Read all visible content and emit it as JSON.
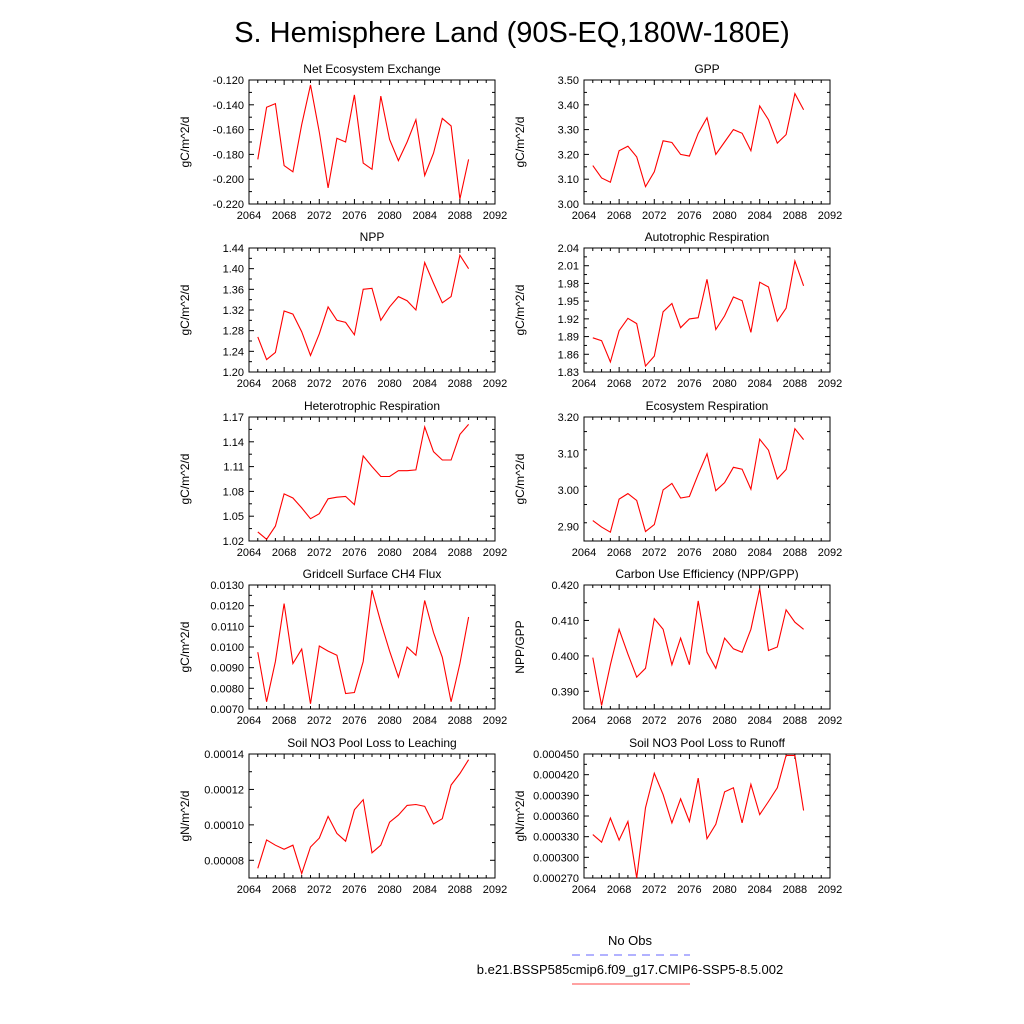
{
  "title": "S. Hemisphere Land (90S-EQ,180W-180E)",
  "legend": {
    "entries": [
      {
        "label": "No Obs",
        "color": "#6666ff",
        "dash": "dashed"
      },
      {
        "label": "b.e21.BSSP585cmip6.f09_g17.CMIP6-SSP5-8.5.002",
        "color": "#ff4444",
        "dash": "solid"
      }
    ]
  },
  "chart_data": [
    {
      "type": "line",
      "title": "Net Ecosystem Exchange",
      "ylabel": "gC/m^2/d",
      "xlim": [
        2064,
        2092
      ],
      "ylim": [
        -0.22,
        -0.12
      ],
      "xticks": [
        "2064",
        "2068",
        "2072",
        "2076",
        "2080",
        "2084",
        "2088",
        "2092"
      ],
      "yticks": [
        "-0.120",
        "-0.140",
        "-0.160",
        "-0.180",
        "-0.200",
        "-0.220"
      ],
      "series": [
        {
          "color": "#ff0000",
          "x": [
            2065,
            2066,
            2067,
            2068,
            2069,
            2070,
            2071,
            2072,
            2073,
            2074,
            2075,
            2076,
            2077,
            2078,
            2079,
            2080,
            2081,
            2082,
            2083,
            2084,
            2085,
            2086,
            2087,
            2088,
            2089
          ],
          "values": [
            -0.184,
            -0.142,
            -0.139,
            -0.189,
            -0.194,
            -0.156,
            -0.124,
            -0.162,
            -0.207,
            -0.167,
            -0.17,
            -0.132,
            -0.187,
            -0.192,
            -0.133,
            -0.168,
            -0.185,
            -0.17,
            -0.152,
            -0.197,
            -0.179,
            -0.151,
            -0.157,
            -0.216,
            -0.184
          ]
        }
      ]
    },
    {
      "type": "line",
      "title": "GPP",
      "ylabel": "gC/m^2/d",
      "xlim": [
        2064,
        2092
      ],
      "ylim": [
        3.0,
        3.5
      ],
      "xticks": [
        "2064",
        "2068",
        "2072",
        "2076",
        "2080",
        "2084",
        "2088",
        "2092"
      ],
      "yticks": [
        "3.50",
        "3.40",
        "3.30",
        "3.20",
        "3.10",
        "3.00"
      ],
      "series": [
        {
          "color": "#ff0000",
          "x": [
            2065,
            2066,
            2067,
            2068,
            2069,
            2070,
            2071,
            2072,
            2073,
            2074,
            2075,
            2076,
            2077,
            2078,
            2079,
            2080,
            2081,
            2082,
            2083,
            2084,
            2085,
            2086,
            2087,
            2088,
            2089
          ],
          "values": [
            3.155,
            3.105,
            3.088,
            3.215,
            3.233,
            3.19,
            3.07,
            3.13,
            3.255,
            3.248,
            3.2,
            3.193,
            3.285,
            3.348,
            3.2,
            3.25,
            3.3,
            3.285,
            3.215,
            3.395,
            3.34,
            3.245,
            3.28,
            3.445,
            3.38
          ]
        }
      ]
    },
    {
      "type": "line",
      "title": "NPP",
      "ylabel": "gC/m^2/d",
      "xlim": [
        2064,
        2092
      ],
      "ylim": [
        1.2,
        1.44
      ],
      "xticks": [
        "2064",
        "2068",
        "2072",
        "2076",
        "2080",
        "2084",
        "2088",
        "2092"
      ],
      "yticks": [
        "1.44",
        "1.40",
        "1.36",
        "1.32",
        "1.28",
        "1.24",
        "1.20"
      ],
      "series": [
        {
          "color": "#ff0000",
          "x": [
            2065,
            2066,
            2067,
            2068,
            2069,
            2070,
            2071,
            2072,
            2073,
            2074,
            2075,
            2076,
            2077,
            2078,
            2079,
            2080,
            2081,
            2082,
            2083,
            2084,
            2085,
            2086,
            2087,
            2088,
            2089
          ],
          "values": [
            1.268,
            1.224,
            1.238,
            1.318,
            1.312,
            1.278,
            1.232,
            1.274,
            1.326,
            1.3,
            1.296,
            1.272,
            1.36,
            1.362,
            1.3,
            1.326,
            1.346,
            1.338,
            1.32,
            1.412,
            1.372,
            1.334,
            1.346,
            1.426,
            1.4
          ]
        }
      ]
    },
    {
      "type": "line",
      "title": "Autotrophic Respiration",
      "ylabel": "gC/m^2/d",
      "xlim": [
        2064,
        2092
      ],
      "ylim": [
        1.83,
        2.04
      ],
      "xticks": [
        "2064",
        "2068",
        "2072",
        "2076",
        "2080",
        "2084",
        "2088",
        "2092"
      ],
      "yticks": [
        "2.04",
        "2.01",
        "1.98",
        "1.95",
        "1.92",
        "1.89",
        "1.86",
        "1.83"
      ],
      "series": [
        {
          "color": "#ff0000",
          "x": [
            2065,
            2066,
            2067,
            2068,
            2069,
            2070,
            2071,
            2072,
            2073,
            2074,
            2075,
            2076,
            2077,
            2078,
            2079,
            2080,
            2081,
            2082,
            2083,
            2084,
            2085,
            2086,
            2087,
            2088,
            2089
          ],
          "values": [
            1.888,
            1.883,
            1.847,
            1.9,
            1.921,
            1.912,
            1.84,
            1.857,
            1.932,
            1.946,
            1.905,
            1.92,
            1.922,
            1.987,
            1.902,
            1.925,
            1.957,
            1.951,
            1.897,
            1.982,
            1.974,
            1.916,
            1.938,
            2.018,
            1.976
          ]
        }
      ]
    },
    {
      "type": "line",
      "title": "Heterotrophic Respiration",
      "ylabel": "gC/m^2/d",
      "xlim": [
        2064,
        2092
      ],
      "ylim": [
        1.02,
        1.17
      ],
      "xticks": [
        "2064",
        "2068",
        "2072",
        "2076",
        "2080",
        "2084",
        "2088",
        "2092"
      ],
      "yticks": [
        "1.17",
        "1.14",
        "1.11",
        "1.08",
        "1.05",
        "1.02"
      ],
      "series": [
        {
          "color": "#ff0000",
          "x": [
            2065,
            2066,
            2067,
            2068,
            2069,
            2070,
            2071,
            2072,
            2073,
            2074,
            2075,
            2076,
            2077,
            2078,
            2079,
            2080,
            2081,
            2082,
            2083,
            2084,
            2085,
            2086,
            2087,
            2088,
            2089
          ],
          "values": [
            1.031,
            1.022,
            1.038,
            1.077,
            1.072,
            1.06,
            1.047,
            1.053,
            1.071,
            1.073,
            1.074,
            1.064,
            1.123,
            1.11,
            1.098,
            1.098,
            1.105,
            1.105,
            1.106,
            1.158,
            1.128,
            1.118,
            1.118,
            1.149,
            1.161
          ]
        }
      ]
    },
    {
      "type": "line",
      "title": "Ecosystem Respiration",
      "ylabel": "gC/m^2/d",
      "xlim": [
        2064,
        2092
      ],
      "ylim": [
        2.86,
        3.2
      ],
      "xticks": [
        "2064",
        "2068",
        "2072",
        "2076",
        "2080",
        "2084",
        "2088",
        "2092"
      ],
      "yticks": [
        "3.20",
        "3.10",
        "3.00",
        "2.90"
      ],
      "series": [
        {
          "color": "#ff0000",
          "x": [
            2065,
            2066,
            2067,
            2068,
            2069,
            2070,
            2071,
            2072,
            2073,
            2074,
            2075,
            2076,
            2077,
            2078,
            2079,
            2080,
            2081,
            2082,
            2083,
            2084,
            2085,
            2086,
            2087,
            2088,
            2089
          ],
          "values": [
            2.916,
            2.898,
            2.884,
            2.975,
            2.99,
            2.971,
            2.886,
            2.905,
            3.0,
            3.018,
            2.978,
            2.982,
            3.043,
            3.099,
            2.998,
            3.02,
            3.062,
            3.057,
            3.002,
            3.139,
            3.109,
            3.03,
            3.056,
            3.168,
            3.138
          ]
        }
      ]
    },
    {
      "type": "line",
      "title": "Gridcell Surface CH4 Flux",
      "ylabel": "gC/m^2/d",
      "xlim": [
        2064,
        2092
      ],
      "ylim": [
        0.007,
        0.013
      ],
      "xticks": [
        "2064",
        "2068",
        "2072",
        "2076",
        "2080",
        "2084",
        "2088",
        "2092"
      ],
      "yticks": [
        "0.0130",
        "0.0120",
        "0.0110",
        "0.0100",
        "0.0090",
        "0.0080",
        "0.0070"
      ],
      "series": [
        {
          "color": "#ff0000",
          "x": [
            2065,
            2066,
            2067,
            2068,
            2069,
            2070,
            2071,
            2072,
            2073,
            2074,
            2075,
            2076,
            2077,
            2078,
            2079,
            2080,
            2081,
            2082,
            2083,
            2084,
            2085,
            2086,
            2087,
            2088,
            2089
          ],
          "values": [
            0.00975,
            0.00735,
            0.0093,
            0.0121,
            0.0092,
            0.0099,
            0.00725,
            0.01005,
            0.0098,
            0.0096,
            0.00775,
            0.0078,
            0.0093,
            0.01275,
            0.0112,
            0.0098,
            0.00855,
            0.01,
            0.0096,
            0.01225,
            0.0107,
            0.0095,
            0.00735,
            0.0092,
            0.01145
          ]
        }
      ]
    },
    {
      "type": "line",
      "title": "Carbon Use Efficiency (NPP/GPP)",
      "ylabel": "NPP/GPP",
      "xlim": [
        2064,
        2092
      ],
      "ylim": [
        0.385,
        0.42
      ],
      "xticks": [
        "2064",
        "2068",
        "2072",
        "2076",
        "2080",
        "2084",
        "2088",
        "2092"
      ],
      "yticks": [
        "0.420",
        "0.410",
        "0.400",
        "0.390"
      ],
      "series": [
        {
          "color": "#ff0000",
          "x": [
            2065,
            2066,
            2067,
            2068,
            2069,
            2070,
            2071,
            2072,
            2073,
            2074,
            2075,
            2076,
            2077,
            2078,
            2079,
            2080,
            2081,
            2082,
            2083,
            2084,
            2085,
            2086,
            2087,
            2088,
            2089
          ],
          "values": [
            0.3995,
            0.386,
            0.3975,
            0.4075,
            0.4005,
            0.394,
            0.3965,
            0.4105,
            0.4075,
            0.3975,
            0.405,
            0.3975,
            0.4155,
            0.401,
            0.3965,
            0.405,
            0.402,
            0.401,
            0.4075,
            0.419,
            0.4015,
            0.4025,
            0.413,
            0.4095,
            0.4075
          ]
        }
      ]
    },
    {
      "type": "line",
      "title": "Soil NO3 Pool Loss to Leaching",
      "ylabel": "gN/m^2/d",
      "xlim": [
        2064,
        2092
      ],
      "ylim": [
        7e-05,
        0.00014
      ],
      "xticks": [
        "2064",
        "2068",
        "2072",
        "2076",
        "2080",
        "2084",
        "2088",
        "2092"
      ],
      "yticks": [
        "0.00014",
        "0.00012",
        "0.00010",
        "0.00008"
      ],
      "series": [
        {
          "color": "#ff0000",
          "x": [
            2065,
            2066,
            2067,
            2068,
            2069,
            2070,
            2071,
            2072,
            2073,
            2074,
            2075,
            2076,
            2077,
            2078,
            2079,
            2080,
            2081,
            2082,
            2083,
            2084,
            2085,
            2086,
            2087,
            2088,
            2089
          ],
          "values": [
            7.55e-05,
            9.15e-05,
            8.85e-05,
            8.62e-05,
            8.85e-05,
            7.25e-05,
            8.75e-05,
            9.25e-05,
            0.0001048,
            9.52e-05,
            9.08e-05,
            0.0001085,
            0.0001142,
            8.42e-05,
            8.85e-05,
            0.0001015,
            0.0001055,
            0.000111,
            0.0001115,
            0.0001105,
            0.0001005,
            0.0001035,
            0.0001225,
            0.000129,
            0.0001368
          ]
        }
      ]
    },
    {
      "type": "line",
      "title": "Soil NO3 Pool Loss to Runoff",
      "ylabel": "gN/m^2/d",
      "xlim": [
        2064,
        2092
      ],
      "ylim": [
        0.00027,
        0.00045
      ],
      "xticks": [
        "2064",
        "2068",
        "2072",
        "2076",
        "2080",
        "2084",
        "2088",
        "2092"
      ],
      "yticks": [
        "0.000450",
        "0.000420",
        "0.000390",
        "0.000360",
        "0.000330",
        "0.000300",
        "0.000270"
      ],
      "series": [
        {
          "color": "#ff0000",
          "x": [
            2065,
            2066,
            2067,
            2068,
            2069,
            2070,
            2071,
            2072,
            2073,
            2074,
            2075,
            2076,
            2077,
            2078,
            2079,
            2080,
            2081,
            2082,
            2083,
            2084,
            2085,
            2086,
            2087,
            2088,
            2089
          ],
          "values": [
            0.000333,
            0.000322,
            0.000357,
            0.000325,
            0.000352,
            0.00027,
            0.000372,
            0.000422,
            0.000391,
            0.00035,
            0.000385,
            0.000352,
            0.000415,
            0.000327,
            0.000348,
            0.000395,
            0.000401,
            0.00035,
            0.000406,
            0.000362,
            0.000381,
            0.000401,
            0.000448,
            0.000448,
            0.000368
          ]
        }
      ]
    }
  ]
}
